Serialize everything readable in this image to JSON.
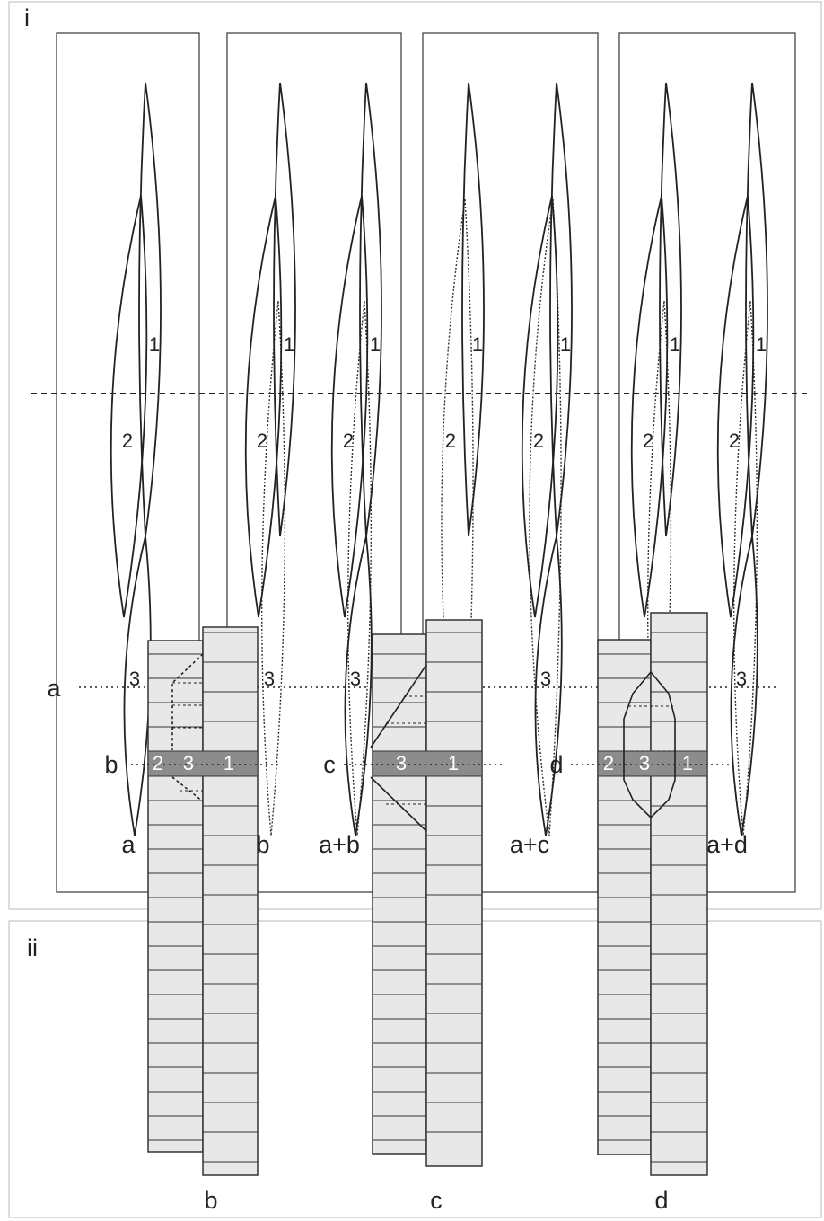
{
  "panel_i": {
    "label": "i",
    "figures": [
      {
        "caption": "a",
        "labels": [
          "1",
          "2",
          "3"
        ]
      },
      {
        "caption": "b",
        "labels": [
          "1",
          "2",
          "3"
        ]
      },
      {
        "caption": "a+b",
        "labels": [
          "1",
          "2",
          "3"
        ]
      },
      {
        "caption": "c",
        "labels": [
          "1",
          "2",
          "3"
        ]
      },
      {
        "caption": "a+c",
        "labels": [
          "1",
          "2",
          "3"
        ]
      },
      {
        "caption": "d",
        "labels": [
          "1",
          "2",
          "3"
        ]
      },
      {
        "caption": "a+d",
        "labels": [
          "1",
          "2",
          "3"
        ]
      }
    ]
  },
  "panel_ii": {
    "label": "ii",
    "line_label": "a",
    "diagrams": [
      {
        "row_label": "b",
        "cells": [
          "2",
          "3",
          "1"
        ],
        "caption": "b"
      },
      {
        "row_label": "c",
        "cells": [
          "3",
          "1"
        ],
        "caption": "c"
      },
      {
        "row_label": "d",
        "cells": [
          "2",
          "3",
          "1"
        ],
        "caption": "d"
      }
    ]
  }
}
